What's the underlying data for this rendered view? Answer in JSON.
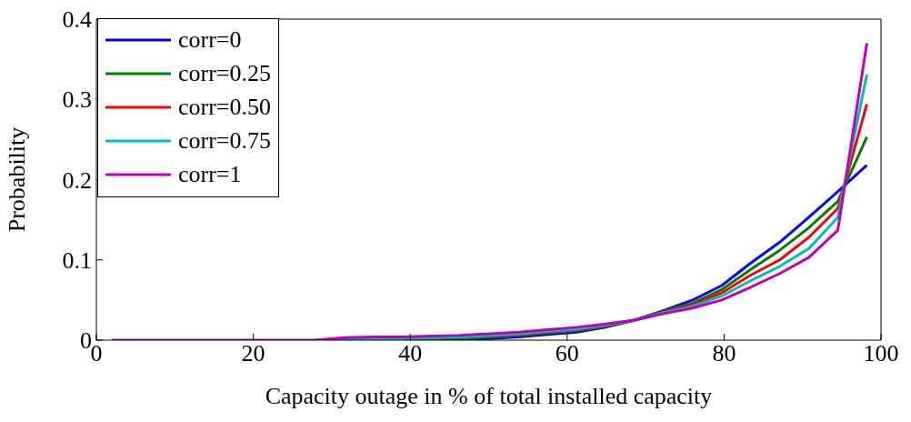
{
  "chart_data": {
    "type": "line",
    "xlabel": "Capacity outage in % of total installed capacity",
    "ylabel": "Probability",
    "x": [
      2,
      5.7,
      9.4,
      13.1,
      16.8,
      20.5,
      24.2,
      27.9,
      31.6,
      35.3,
      39,
      42.7,
      46.4,
      50.1,
      53.8,
      57.5,
      61.2,
      64.9,
      68.6,
      72.3,
      76,
      79.7,
      83.4,
      87.1,
      90.8,
      94.5,
      98.2
    ],
    "series": [
      {
        "name": "corr=0",
        "color": "#0000ff",
        "values": [
          null,
          null,
          null,
          null,
          null,
          null,
          null,
          null,
          null,
          null,
          null,
          0,
          0.001,
          0.002,
          0.004,
          0.007,
          0.01,
          0.016,
          0.025,
          0.037,
          0.05,
          0.068,
          0.096,
          0.122,
          0.153,
          0.185,
          0.218
        ]
      },
      {
        "name": "corr=0.25",
        "color": "#008000",
        "values": [
          null,
          null,
          null,
          null,
          null,
          null,
          null,
          null,
          null,
          null,
          0,
          0.001,
          0.002,
          0.004,
          0.006,
          0.009,
          0.012,
          0.017,
          0.025,
          0.036,
          0.046,
          0.063,
          0.088,
          0.112,
          0.14,
          0.173,
          0.253
        ]
      },
      {
        "name": "corr=0.50",
        "color": "#ff0000",
        "values": [
          null,
          null,
          null,
          null,
          null,
          null,
          null,
          null,
          null,
          null,
          null,
          null,
          null,
          0.005,
          0.007,
          0.01,
          0.013,
          0.018,
          0.025,
          0.035,
          0.044,
          0.059,
          0.081,
          0.1,
          0.128,
          0.164,
          0.294
        ]
      },
      {
        "name": "corr=0.75",
        "color": "#00bfbf",
        "values": [
          null,
          null,
          null,
          null,
          null,
          null,
          null,
          0,
          0.001,
          0.001,
          0.002,
          0.003,
          0.004,
          0.006,
          0.008,
          0.011,
          0.014,
          0.019,
          0.025,
          0.034,
          0.042,
          0.055,
          0.074,
          0.092,
          0.114,
          0.153,
          0.331
        ]
      },
      {
        "name": "corr=1",
        "color": "#bf00bf",
        "values": [
          0,
          0,
          0,
          0,
          0,
          0,
          0,
          0,
          0.003,
          0.004,
          0.004,
          0.005,
          0.006,
          0.008,
          0.01,
          0.013,
          0.016,
          0.02,
          0.025,
          0.033,
          0.04,
          0.05,
          0.066,
          0.083,
          0.103,
          0.137,
          0.37
        ]
      }
    ],
    "xlim": [
      0,
      100
    ],
    "xticks": [
      0,
      20,
      40,
      60,
      80,
      100
    ],
    "ylim": [
      0,
      0.4
    ],
    "yticks": [
      0,
      0.1,
      0.2,
      0.3,
      0.4
    ],
    "legend": "top left",
    "marker": "none",
    "line_style": "solid",
    "grid": false
  }
}
